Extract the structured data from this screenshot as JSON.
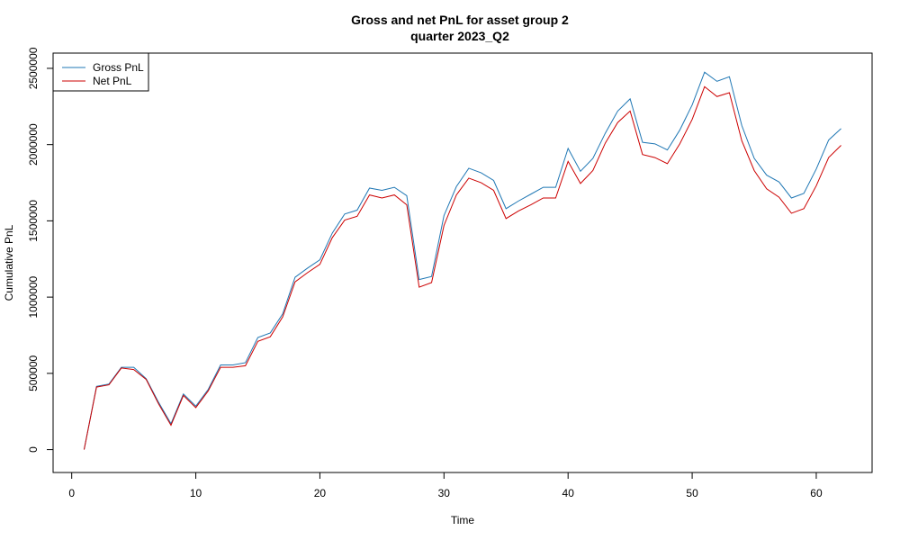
{
  "chart_data": {
    "type": "line",
    "title": "Gross and net PnL for asset group 2",
    "subtitle": "quarter 2023_Q2",
    "xlabel": "Time",
    "ylabel": "Cumulative PnL",
    "xlim": [
      -1.5,
      64.5
    ],
    "ylim": [
      -150000,
      2600000
    ],
    "xticks": [
      0,
      10,
      20,
      30,
      40,
      50,
      60
    ],
    "yticks": [
      0,
      500000,
      1000000,
      1500000,
      2000000,
      2500000
    ],
    "xtick_labels": [
      "0",
      "10",
      "20",
      "30",
      "40",
      "50",
      "60"
    ],
    "ytick_labels": [
      "0",
      "500000",
      "1000000",
      "1500000",
      "2000000",
      "2500000"
    ],
    "grid": false,
    "legend_position": "top-left",
    "x": [
      1,
      2,
      3,
      4,
      5,
      6,
      7,
      8,
      9,
      10,
      11,
      12,
      13,
      14,
      15,
      16,
      17,
      18,
      19,
      20,
      21,
      22,
      23,
      24,
      25,
      26,
      27,
      28,
      29,
      30,
      31,
      32,
      33,
      34,
      35,
      36,
      37,
      38,
      39,
      40,
      41,
      42,
      43,
      44,
      45,
      46,
      47,
      48,
      49,
      50,
      51,
      52,
      53,
      54,
      55,
      56,
      57,
      58,
      59,
      60,
      61,
      62
    ],
    "series": [
      {
        "name": "Gross PnL",
        "color": "#1f77b4",
        "values": [
          0,
          415000,
          430000,
          540000,
          540000,
          465000,
          310000,
          170000,
          365000,
          285000,
          395000,
          555000,
          555000,
          570000,
          735000,
          765000,
          890000,
          1130000,
          1190000,
          1245000,
          1420000,
          1545000,
          1570000,
          1715000,
          1700000,
          1720000,
          1665000,
          1115000,
          1135000,
          1535000,
          1725000,
          1845000,
          1815000,
          1765000,
          1580000,
          1630000,
          1675000,
          1720000,
          1720000,
          1975000,
          1825000,
          1910000,
          2075000,
          2220000,
          2300000,
          2015000,
          2005000,
          1965000,
          2095000,
          2260000,
          2475000,
          2415000,
          2445000,
          2125000,
          1910000,
          1800000,
          1755000,
          1650000,
          1680000,
          1840000,
          2030000,
          2105000
        ]
      },
      {
        "name": "Net PnL",
        "color": "#cc0000",
        "values": [
          0,
          410000,
          425000,
          535000,
          525000,
          460000,
          300000,
          160000,
          355000,
          275000,
          385000,
          540000,
          540000,
          550000,
          710000,
          740000,
          870000,
          1100000,
          1160000,
          1215000,
          1390000,
          1505000,
          1530000,
          1670000,
          1650000,
          1670000,
          1605000,
          1065000,
          1095000,
          1470000,
          1670000,
          1780000,
          1750000,
          1700000,
          1515000,
          1565000,
          1605000,
          1650000,
          1650000,
          1890000,
          1745000,
          1830000,
          2010000,
          2145000,
          2220000,
          1935000,
          1915000,
          1875000,
          2005000,
          2165000,
          2380000,
          2315000,
          2340000,
          2025000,
          1830000,
          1710000,
          1655000,
          1550000,
          1580000,
          1730000,
          1915000,
          1995000
        ]
      }
    ]
  }
}
